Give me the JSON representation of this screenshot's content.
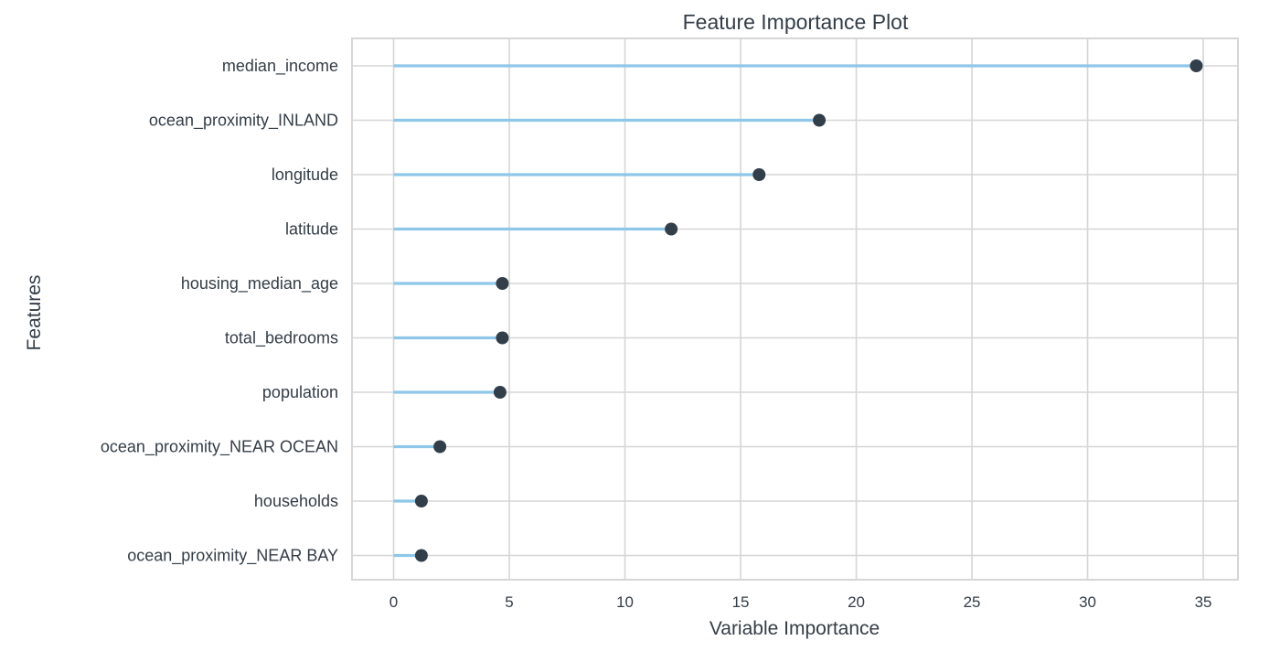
{
  "chart_data": {
    "type": "lollipop",
    "title": "Feature Importance Plot",
    "xlabel": "Variable Importance",
    "ylabel": "Features",
    "xlim": [
      -1.8,
      36.5
    ],
    "xticks": [
      0,
      5,
      10,
      15,
      20,
      25,
      30,
      35
    ],
    "grid": true,
    "colors": {
      "stem": "#8ec7e8",
      "dot": "#323f4b",
      "grid": "#d6d6d6",
      "text": "#333d47"
    },
    "categories": [
      "median_income",
      "ocean_proximity_INLAND",
      "longitude",
      "latitude",
      "housing_median_age",
      "total_bedrooms",
      "population",
      "ocean_proximity_NEAR OCEAN",
      "households",
      "ocean_proximity_NEAR BAY"
    ],
    "values": [
      34.7,
      18.4,
      15.8,
      12.0,
      4.7,
      4.7,
      4.6,
      2.0,
      1.2,
      1.2
    ]
  }
}
